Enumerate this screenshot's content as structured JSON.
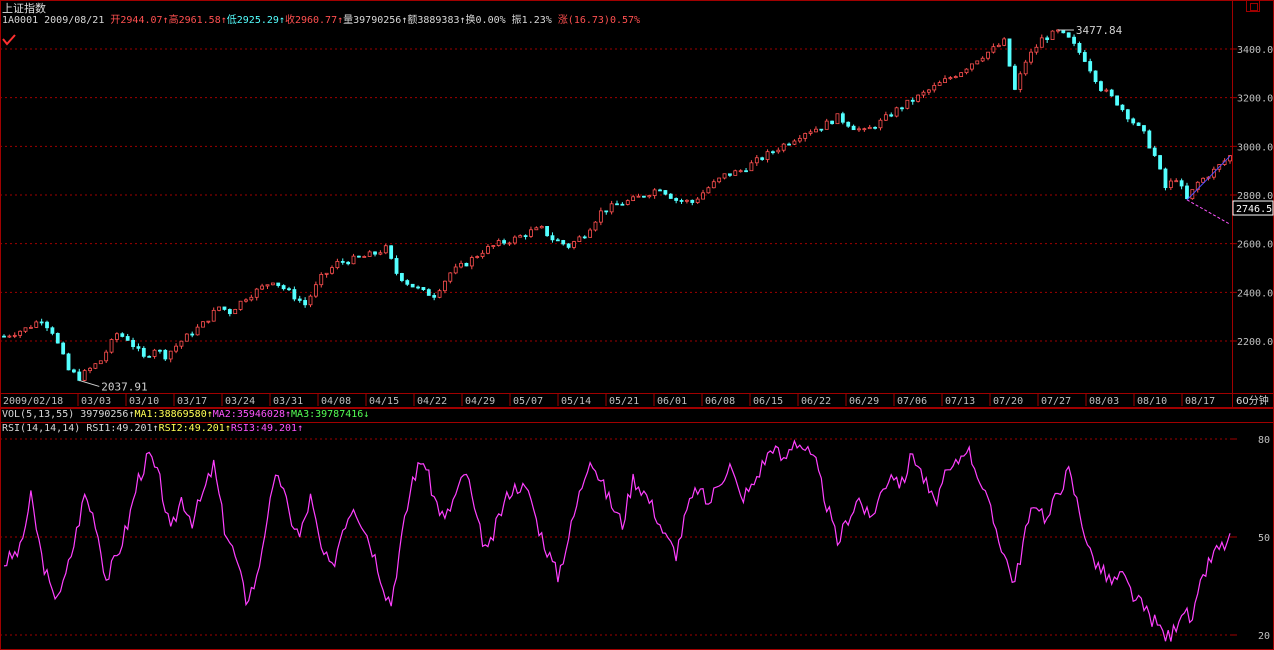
{
  "header": {
    "index_name": "上证指数",
    "code_date": "1A0001 2009/08/21",
    "open": "开2944.07",
    "high": "高2961.58",
    "low": "低2925.29",
    "close": "收2960.77",
    "volume": "量39790256",
    "amount": "额3889383",
    "turnover": "换0.00%",
    "amplitude": "振1.23%",
    "change": "涨(16.73)0.57%"
  },
  "vol_bar": {
    "label": "VOL(5,13,55) 39790256",
    "ma1": "MA1:38869580",
    "ma2": "MA2:35946028",
    "ma3": "MA3:39787416"
  },
  "rsi_bar": {
    "label": "RSI(14,14,14)",
    "rsi1": "RSI1:49.201",
    "rsi2": "RSI2:49.201",
    "rsi3": "RSI3:49.201"
  },
  "period_label": "60分钟",
  "colors": {
    "up": "#ff5050",
    "down": "#54ffff",
    "grid": "#a00000",
    "rsi": "#ff40ff"
  },
  "chart_data": [
    {
      "type": "candlestick",
      "series_name": "上证指数",
      "ylim": [
        2037,
        3478
      ],
      "y_ticks": [
        "3400.0",
        "3200.0",
        "3000.0",
        "2800.0",
        "2600.0",
        "2400.0",
        "2200.0"
      ],
      "x_tick_labels": [
        "2009/02/18",
        "03/03",
        "03/10",
        "03/17",
        "03/24",
        "03/31",
        "04/08",
        "04/15",
        "04/22",
        "04/29",
        "05/07",
        "05/14",
        "05/21",
        "06/01",
        "06/08",
        "06/15",
        "06/22",
        "06/29",
        "07/06",
        "07/13",
        "07/20",
        "07/27",
        "08/03",
        "08/10",
        "08/17"
      ],
      "annotations": {
        "min_label": "2037.91",
        "max_label": "3477.84",
        "last_label": "2746.5"
      },
      "close_path": [
        [
          0,
          2220
        ],
        [
          4,
          2250
        ],
        [
          7,
          2290
        ],
        [
          9,
          2240
        ],
        [
          12,
          2080
        ],
        [
          14,
          2050
        ],
        [
          18,
          2120
        ],
        [
          21,
          2230
        ],
        [
          23,
          2210
        ],
        [
          26,
          2130
        ],
        [
          28,
          2170
        ],
        [
          30,
          2140
        ],
        [
          33,
          2200
        ],
        [
          37,
          2270
        ],
        [
          40,
          2340
        ],
        [
          42,
          2320
        ],
        [
          45,
          2380
        ],
        [
          48,
          2420
        ],
        [
          50,
          2450
        ],
        [
          53,
          2400
        ],
        [
          56,
          2350
        ],
        [
          59,
          2460
        ],
        [
          62,
          2520
        ],
        [
          66,
          2540
        ],
        [
          69,
          2560
        ],
        [
          71,
          2580
        ],
        [
          73,
          2480
        ],
        [
          75,
          2440
        ],
        [
          78,
          2400
        ],
        [
          80,
          2390
        ],
        [
          83,
          2480
        ],
        [
          86,
          2520
        ],
        [
          89,
          2570
        ],
        [
          92,
          2600
        ],
        [
          95,
          2620
        ],
        [
          98,
          2650
        ],
        [
          100,
          2660
        ],
        [
          102,
          2620
        ],
        [
          105,
          2590
        ],
        [
          108,
          2640
        ],
        [
          111,
          2730
        ],
        [
          114,
          2760
        ],
        [
          117,
          2780
        ],
        [
          120,
          2810
        ],
        [
          122,
          2830
        ],
        [
          125,
          2780
        ],
        [
          128,
          2770
        ],
        [
          131,
          2830
        ],
        [
          134,
          2880
        ],
        [
          137,
          2900
        ],
        [
          140,
          2940
        ],
        [
          143,
          2980
        ],
        [
          146,
          3020
        ],
        [
          149,
          3060
        ],
        [
          152,
          3080
        ],
        [
          155,
          3120
        ],
        [
          158,
          3080
        ],
        [
          160,
          3060
        ],
        [
          163,
          3100
        ],
        [
          166,
          3150
        ],
        [
          169,
          3190
        ],
        [
          172,
          3230
        ],
        [
          175,
          3270
        ],
        [
          178,
          3310
        ],
        [
          181,
          3360
        ],
        [
          184,
          3400
        ],
        [
          186,
          3430
        ],
        [
          188,
          3230
        ],
        [
          190,
          3350
        ],
        [
          193,
          3440
        ],
        [
          196,
          3470
        ],
        [
          198,
          3440
        ],
        [
          201,
          3360
        ],
        [
          204,
          3240
        ],
        [
          207,
          3180
        ],
        [
          210,
          3100
        ],
        [
          212,
          3050
        ],
        [
          214,
          2960
        ],
        [
          216,
          2830
        ],
        [
          218,
          2870
        ],
        [
          220,
          2780
        ],
        [
          222,
          2850
        ],
        [
          225,
          2900
        ],
        [
          228,
          2960
        ]
      ]
    },
    {
      "type": "line",
      "series_name": "RSI",
      "ylim": [
        18,
        85
      ],
      "y_ticks": [
        "80",
        "50",
        "20"
      ],
      "points": [
        [
          0,
          42
        ],
        [
          3,
          46
        ],
        [
          5,
          62
        ],
        [
          7,
          44
        ],
        [
          9,
          32
        ],
        [
          11,
          35
        ],
        [
          13,
          48
        ],
        [
          15,
          63
        ],
        [
          17,
          55
        ],
        [
          19,
          37
        ],
        [
          21,
          44
        ],
        [
          23,
          54
        ],
        [
          25,
          68
        ],
        [
          27,
          75
        ],
        [
          29,
          67
        ],
        [
          31,
          51
        ],
        [
          33,
          62
        ],
        [
          35,
          55
        ],
        [
          37,
          63
        ],
        [
          39,
          72
        ],
        [
          41,
          53
        ],
        [
          43,
          44
        ],
        [
          45,
          31
        ],
        [
          47,
          37
        ],
        [
          49,
          57
        ],
        [
          51,
          70
        ],
        [
          53,
          57
        ],
        [
          55,
          50
        ],
        [
          57,
          62
        ],
        [
          59,
          46
        ],
        [
          61,
          40
        ],
        [
          63,
          53
        ],
        [
          65,
          60
        ],
        [
          67,
          53
        ],
        [
          69,
          44
        ],
        [
          71,
          33
        ],
        [
          72,
          30
        ],
        [
          74,
          50
        ],
        [
          76,
          68
        ],
        [
          78,
          74
        ],
        [
          80,
          62
        ],
        [
          82,
          55
        ],
        [
          84,
          63
        ],
        [
          86,
          70
        ],
        [
          88,
          54
        ],
        [
          90,
          45
        ],
        [
          92,
          56
        ],
        [
          94,
          64
        ],
        [
          96,
          66
        ],
        [
          98,
          62
        ],
        [
          99,
          55
        ],
        [
          101,
          46
        ],
        [
          103,
          38
        ],
        [
          105,
          50
        ],
        [
          107,
          63
        ],
        [
          109,
          75
        ],
        [
          111,
          67
        ],
        [
          113,
          60
        ],
        [
          115,
          54
        ],
        [
          117,
          68
        ],
        [
          119,
          64
        ],
        [
          121,
          58
        ],
        [
          123,
          50
        ],
        [
          125,
          45
        ],
        [
          127,
          58
        ],
        [
          129,
          65
        ],
        [
          131,
          60
        ],
        [
          133,
          67
        ],
        [
          135,
          72
        ],
        [
          137,
          62
        ],
        [
          139,
          65
        ],
        [
          141,
          72
        ],
        [
          143,
          78
        ],
        [
          145,
          73
        ],
        [
          147,
          80
        ],
        [
          149,
          77
        ],
        [
          151,
          72
        ],
        [
          153,
          60
        ],
        [
          155,
          48
        ],
        [
          157,
          56
        ],
        [
          159,
          62
        ],
        [
          161,
          55
        ],
        [
          163,
          63
        ],
        [
          165,
          70
        ],
        [
          167,
          66
        ],
        [
          169,
          76
        ],
        [
          171,
          68
        ],
        [
          173,
          60
        ],
        [
          175,
          68
        ],
        [
          177,
          72
        ],
        [
          179,
          78
        ],
        [
          181,
          70
        ],
        [
          183,
          60
        ],
        [
          185,
          50
        ],
        [
          187,
          40
        ],
        [
          188,
          36
        ],
        [
          190,
          52
        ],
        [
          192,
          61
        ],
        [
          194,
          55
        ],
        [
          196,
          64
        ],
        [
          198,
          70
        ],
        [
          200,
          58
        ],
        [
          202,
          45
        ],
        [
          204,
          40
        ],
        [
          206,
          36
        ],
        [
          208,
          38
        ],
        [
          210,
          32
        ],
        [
          212,
          28
        ],
        [
          214,
          24
        ],
        [
          216,
          20
        ],
        [
          217,
          19
        ],
        [
          219,
          28
        ],
        [
          221,
          24
        ],
        [
          223,
          38
        ],
        [
          225,
          45
        ],
        [
          228,
          49
        ]
      ]
    }
  ]
}
